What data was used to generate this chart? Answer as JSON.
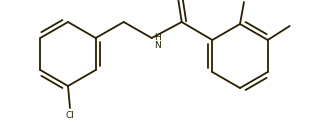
{
  "bg_color": "#ffffff",
  "line_color": "#2a2000",
  "lw": 1.3,
  "fs": 6.5,
  "figsize": [
    3.18,
    1.36
  ],
  "dpi": 100,
  "xlim": [
    0,
    318
  ],
  "ylim": [
    0,
    136
  ]
}
